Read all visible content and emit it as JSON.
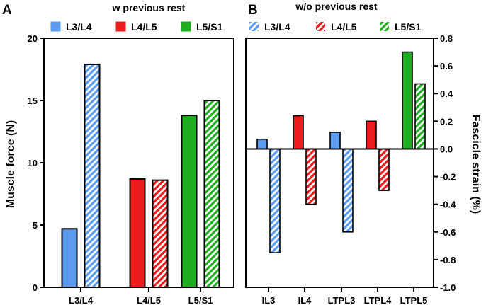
{
  "chart_data": [
    {
      "type": "bar",
      "panel": "A",
      "title": "w previous rest",
      "ylabel": "Muscle force (N)",
      "ylim": [
        0,
        20
      ],
      "yticks": [
        "0",
        "5",
        "10",
        "15",
        "20"
      ],
      "categories": [
        "L3/L4",
        "L4/L5",
        "L5/S1"
      ],
      "legend": [
        "L3/L4",
        "L4/L5",
        "L5/S1"
      ],
      "series": [
        {
          "name": "solid",
          "values": [
            4.7,
            8.7,
            13.8
          ]
        },
        {
          "name": "hatched",
          "values": [
            17.9,
            8.6,
            15.0
          ]
        }
      ],
      "colors": {
        "L3/L4": "#5b9cf0",
        "L4/L5": "#ee1c1c",
        "L5/S1": "#1fae1f"
      }
    },
    {
      "type": "bar",
      "panel": "B",
      "title": "w/o  previous rest",
      "ylabel": "Fascicle strain (%)",
      "ylim": [
        -1.0,
        0.8
      ],
      "yticks": [
        "0.8",
        "0.6",
        "0.4",
        "0.2",
        "0.0",
        "-0.2",
        "-0.4",
        "-0.6",
        "-0.8",
        "-1.0"
      ],
      "categories": [
        "IL3",
        "IL4",
        "LTPL3",
        "LTPL4",
        "LTPL5"
      ],
      "legend": [
        "L3/L4",
        "L4/L5",
        "L5/S1"
      ],
      "series": [
        {
          "name": "solid",
          "values": [
            0.07,
            0.24,
            0.12,
            0.2,
            0.7
          ]
        },
        {
          "name": "hatched",
          "values": [
            -0.75,
            -0.4,
            -0.6,
            -0.3,
            0.47
          ]
        }
      ],
      "colors": {
        "L3/L4": "#5b9cf0",
        "L4/L5": "#ee1c1c",
        "L5/S1": "#1fae1f"
      }
    }
  ]
}
